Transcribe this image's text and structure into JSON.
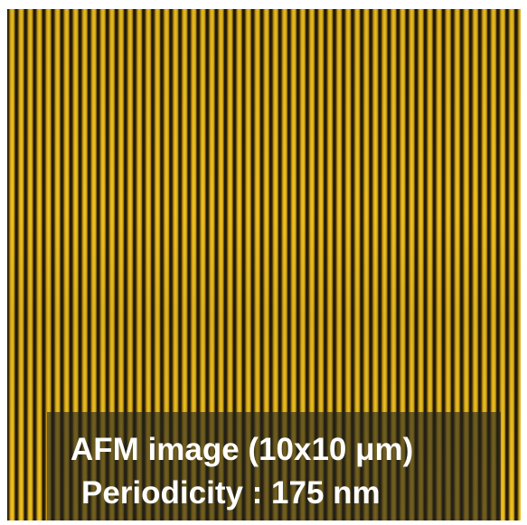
{
  "caption": {
    "line1": "AFM image (10x10 μm)",
    "line2": "Periodicity : 175 nm"
  }
}
